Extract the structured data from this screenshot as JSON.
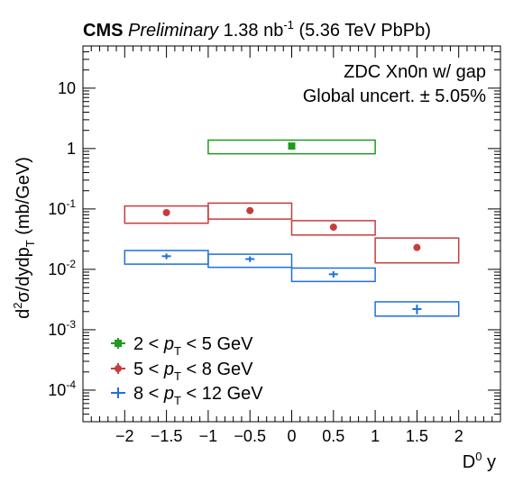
{
  "header": {
    "experiment": "CMS",
    "status": "Preliminary",
    "lumi_value": "1.38 nb",
    "lumi_exp": "-1",
    "system": "(5.36 TeV PbPb)"
  },
  "annotations": {
    "line1": "ZDC Xn0n w/ gap",
    "line2": "Global uncert. ± 5.05%"
  },
  "colors": {
    "series1": "#1f9b1f",
    "series2": "#c83c3c",
    "series3": "#1f6fe0"
  },
  "chart_data": {
    "type": "scatter",
    "xlabel": "D⁰ y",
    "ylabel": "d²σ/dydp_T (mb/GeV)",
    "xlim": [
      -2.5,
      2.5
    ],
    "ylim": [
      3e-05,
      50
    ],
    "yscale": "log",
    "xticks": [
      -2,
      -1.5,
      -1,
      -0.5,
      0,
      0.5,
      1,
      1.5,
      2
    ],
    "xtick_labels": [
      "−2",
      "−1.5",
      "−1",
      "−0.5",
      "0",
      "0.5",
      "1",
      "1.5",
      "2"
    ],
    "yticks": [
      0.0001,
      0.001,
      0.01,
      0.1,
      1,
      10
    ],
    "legend_position": "bottom-left",
    "series": [
      {
        "name": "2 < p_T < 5 GeV",
        "legend_pre": "2 < ",
        "legend_post": " < 5 GeV",
        "marker": "square",
        "color_key": "series1",
        "points": [
          {
            "x": 0.0,
            "y": 1.1,
            "yerr_lo": 0.1,
            "yerr_hi": 0.1,
            "sys_x": [
              -1,
              1
            ],
            "sys_y": [
              0.82,
              1.38
            ]
          }
        ]
      },
      {
        "name": "5 < p_T < 8 GeV",
        "legend_pre": "5 < ",
        "legend_post": " < 8 GeV",
        "marker": "circle",
        "color_key": "series2",
        "points": [
          {
            "x": -1.5,
            "y": 0.087,
            "yerr_lo": 0.004,
            "yerr_hi": 0.004,
            "sys_x": [
              -2,
              -1
            ],
            "sys_y": [
              0.058,
              0.112
            ]
          },
          {
            "x": -0.5,
            "y": 0.094,
            "yerr_lo": 0.004,
            "yerr_hi": 0.004,
            "sys_x": [
              -1,
              0
            ],
            "sys_y": [
              0.068,
              0.125
            ]
          },
          {
            "x": 0.5,
            "y": 0.05,
            "yerr_lo": 0.004,
            "yerr_hi": 0.004,
            "sys_x": [
              0,
              1
            ],
            "sys_y": [
              0.037,
              0.064
            ]
          },
          {
            "x": 1.5,
            "y": 0.023,
            "yerr_lo": 0.002,
            "yerr_hi": 0.002,
            "sys_x": [
              1,
              2
            ],
            "sys_y": [
              0.0128,
              0.033
            ]
          }
        ]
      },
      {
        "name": "8 < p_T < 12 GeV",
        "legend_pre": "8 < ",
        "legend_post": " < 12 GeV",
        "marker": "plus",
        "color_key": "series3",
        "points": [
          {
            "x": -1.5,
            "y": 0.0165,
            "yerr_lo": 0.0018,
            "yerr_hi": 0.0018,
            "sys_x": [
              -2,
              -1
            ],
            "sys_y": [
              0.0122,
              0.0205
            ]
          },
          {
            "x": -0.5,
            "y": 0.0148,
            "yerr_lo": 0.0016,
            "yerr_hi": 0.0016,
            "sys_x": [
              -1,
              0
            ],
            "sys_y": [
              0.0108,
              0.0178
            ]
          },
          {
            "x": 0.5,
            "y": 0.0083,
            "yerr_lo": 0.001,
            "yerr_hi": 0.001,
            "sys_x": [
              0,
              1
            ],
            "sys_y": [
              0.0063,
              0.0105
            ]
          },
          {
            "x": 1.5,
            "y": 0.0022,
            "yerr_lo": 0.0004,
            "yerr_hi": 0.0004,
            "sys_x": [
              1,
              2
            ],
            "sys_y": [
              0.00168,
              0.0029
            ]
          }
        ]
      }
    ]
  }
}
